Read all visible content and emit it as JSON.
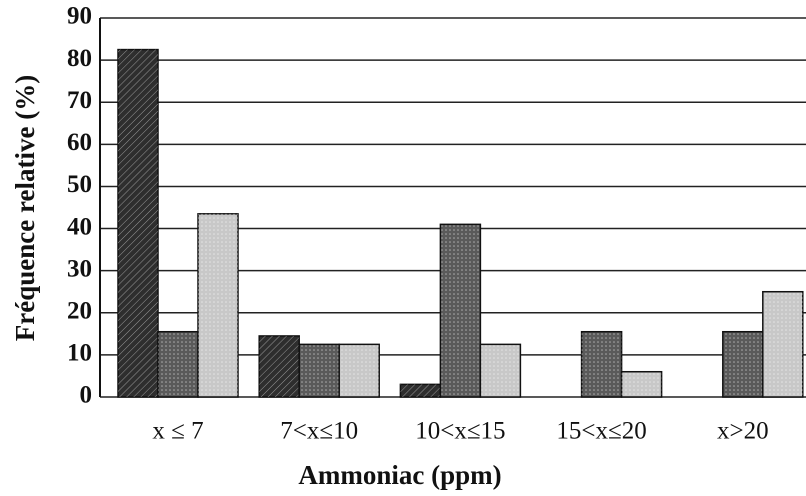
{
  "chart_data": {
    "type": "bar",
    "xlabel": "Ammoniac (ppm)",
    "ylabel": "Fréquence relative (%)",
    "categories": [
      "x ≤ 7",
      "7<x≤10",
      "10<x≤15",
      "15<x≤20",
      "x>20"
    ],
    "series": [
      {
        "color": "#2e2e2e",
        "values": [
          82.5,
          14.5,
          3,
          0,
          0
        ]
      },
      {
        "color": "#5a5a5a",
        "values": [
          15.5,
          12.5,
          41,
          15.5,
          15.5
        ]
      },
      {
        "color": "#c8c8c8",
        "values": [
          43.5,
          12.5,
          12.5,
          6,
          25
        ]
      }
    ],
    "ylim": [
      0,
      90
    ],
    "yticks": [
      0,
      10,
      20,
      30,
      40,
      50,
      60,
      70,
      80,
      90
    ],
    "grid": true
  }
}
